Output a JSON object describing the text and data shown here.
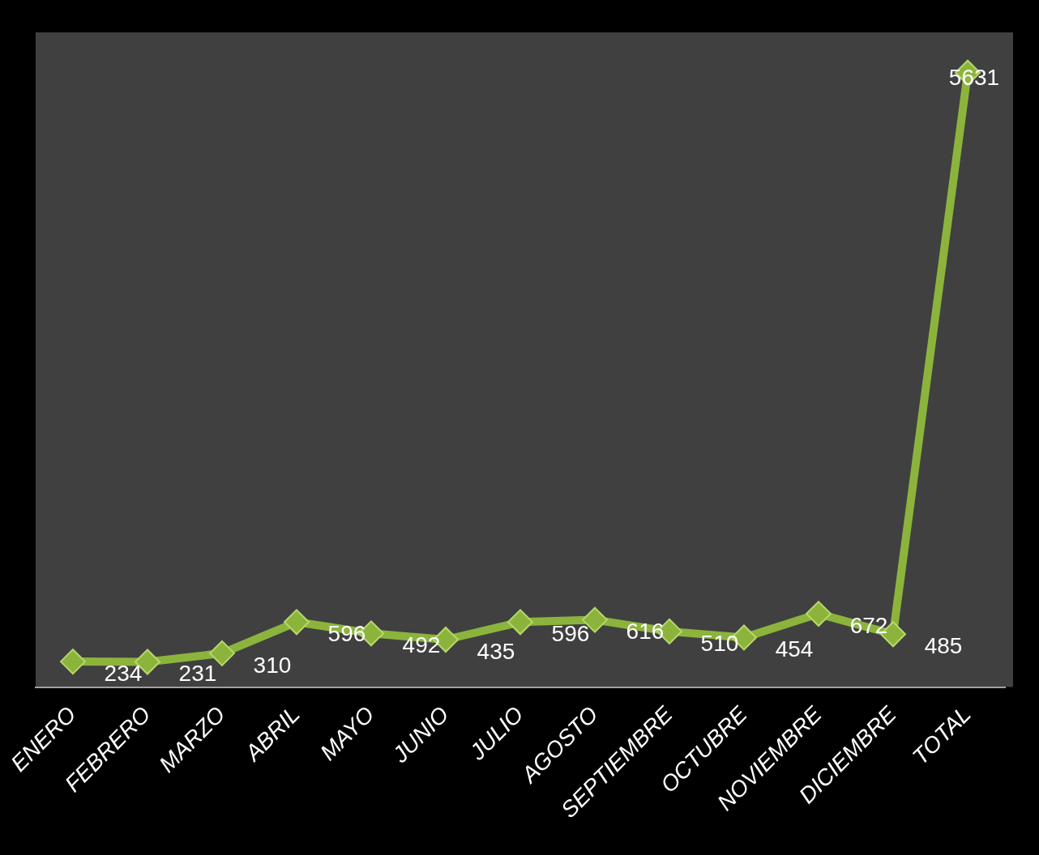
{
  "chart_data": {
    "type": "line",
    "categories": [
      "ENERO",
      "FEBRERO",
      "MARZO",
      "ABRIL",
      "MAYO",
      "JUNIO",
      "JULIO",
      "AGOSTO",
      "SEPTIEMBRE",
      "OCTUBRE",
      "NOVIEMBRE",
      "DICIEMBRE",
      "TOTAL"
    ],
    "values": [
      234,
      231,
      310,
      596,
      492,
      435,
      596,
      616,
      510,
      454,
      672,
      485,
      5631
    ],
    "color": "#8cb43c",
    "data_labels": true,
    "marker": "diamond"
  }
}
